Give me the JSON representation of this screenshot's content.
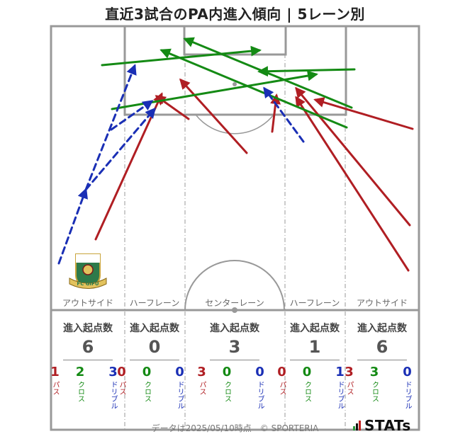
{
  "title": "直近3試合のPA内進入傾向 | 5レーン別",
  "lanes": [
    {
      "name": "アウトサイド",
      "head": "進入起点数",
      "total": "6",
      "pass": "1",
      "cross": "2",
      "dribble": "3"
    },
    {
      "name": "ハーフレーン",
      "head": "進入起点数",
      "total": "0",
      "pass": "0",
      "cross": "0",
      "dribble": "0"
    },
    {
      "name": "センターレーン",
      "head": "進入起点数",
      "total": "3",
      "pass": "3",
      "cross": "0",
      "dribble": "0"
    },
    {
      "name": "ハーフレーン",
      "head": "進入起点数",
      "total": "1",
      "pass": "0",
      "cross": "0",
      "dribble": "1"
    },
    {
      "name": "アウトサイド",
      "head": "進入起点数",
      "total": "6",
      "pass": "3",
      "cross": "3",
      "dribble": "0"
    }
  ],
  "labels": {
    "pass": "パス",
    "cross": "クロス",
    "dribble": "ドリブル"
  },
  "footer": "データは2025/05/10時点　© SPORTERIA",
  "brand": "STATs",
  "logo_text": "FC GIFU",
  "colors": {
    "pass": "#b01e23",
    "cross": "#148a14",
    "dribble": "#1a2fb5"
  },
  "chart_data": {
    "type": "scatter",
    "arrows": [
      {
        "kind": "pass",
        "from": [
          135,
          338
        ],
        "to": [
          228,
          133
        ]
      },
      {
        "kind": "pass",
        "from": [
          266,
          168
        ],
        "to": [
          221,
          136
        ]
      },
      {
        "kind": "pass",
        "from": [
          348,
          216
        ],
        "to": [
          255,
          113
        ]
      },
      {
        "kind": "pass",
        "from": [
          384,
          186
        ],
        "to": [
          390,
          135
        ]
      },
      {
        "kind": "pass",
        "from": [
          578,
          318
        ],
        "to": [
          418,
          125
        ]
      },
      {
        "kind": "pass",
        "from": [
          576,
          382
        ],
        "to": [
          418,
          138
        ]
      },
      {
        "kind": "pass",
        "from": [
          582,
          182
        ],
        "to": [
          445,
          141
        ]
      },
      {
        "kind": "cross",
        "from": [
          144,
          92
        ],
        "to": [
          366,
          71
        ]
      },
      {
        "kind": "cross",
        "from": [
          158,
          154
        ],
        "to": [
          446,
          105
        ]
      },
      {
        "kind": "cross",
        "from": [
          500,
          98
        ],
        "to": [
          366,
          101
        ]
      },
      {
        "kind": "cross",
        "from": [
          489,
          180
        ],
        "to": [
          228,
          71
        ]
      },
      {
        "kind": "cross",
        "from": [
          496,
          152
        ],
        "to": [
          261,
          55
        ]
      },
      {
        "kind": "dribble",
        "from": [
          83,
          372
        ],
        "to": [
          121,
          268
        ]
      },
      {
        "kind": "dribble",
        "from": [
          121,
          268
        ],
        "to": [
          190,
          93
        ]
      },
      {
        "kind": "dribble",
        "from": [
          121,
          268
        ],
        "to": [
          218,
          154
        ]
      },
      {
        "kind": "dribble",
        "from": [
          157,
          183
        ],
        "to": [
          214,
          143
        ]
      },
      {
        "kind": "dribble",
        "from": [
          428,
          200
        ],
        "to": [
          373,
          125
        ]
      }
    ]
  }
}
